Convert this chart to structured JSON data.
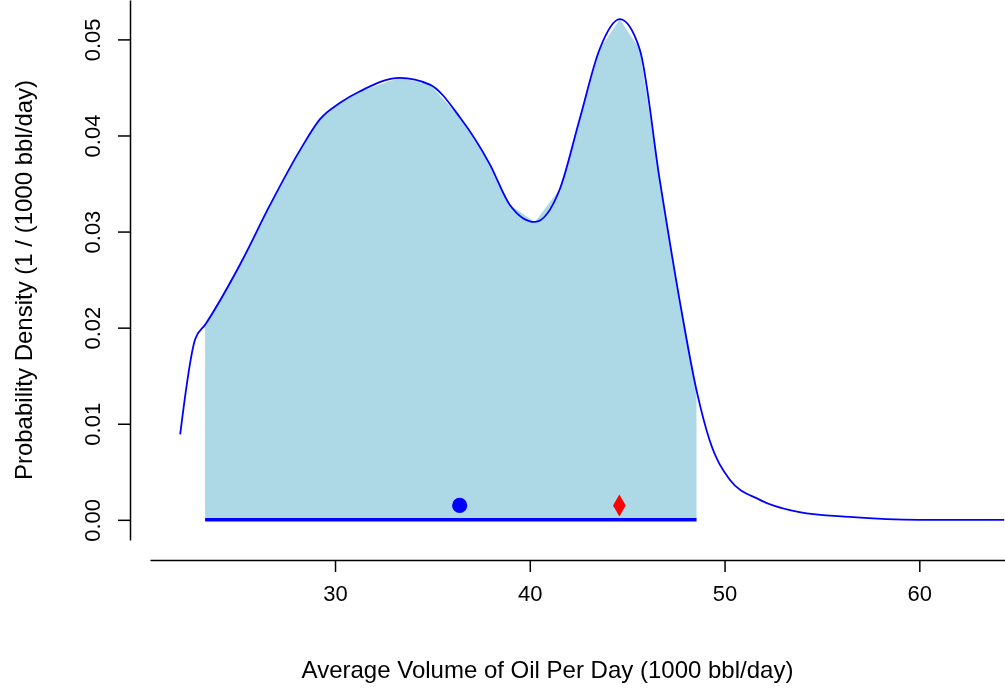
{
  "chart_data": {
    "type": "line",
    "xlabel": "Average Volume of Oil Per Day (1000 bbl/day)",
    "ylabel": "Probability Density (1 / (1000 bbl/day)",
    "xlim": [
      20.5,
      64.4
    ],
    "ylim": [
      -0.0021,
      0.0541
    ],
    "xticks": [
      30,
      40,
      50,
      60
    ],
    "yticks": [
      {
        "value": 0,
        "label": "0.00"
      },
      {
        "value": 0.01,
        "label": "0.01"
      },
      {
        "value": 0.02,
        "label": "0.02"
      },
      {
        "value": 0.03,
        "label": "0.03"
      },
      {
        "value": 0.04,
        "label": "0.04"
      },
      {
        "value": 0.05,
        "label": "0.05"
      }
    ],
    "grid": false,
    "series": [
      {
        "type": "area",
        "color": "#add8e6",
        "x": [
          23.33,
          25.13,
          26.67,
          28.21,
          29.23,
          30.26,
          31.28,
          33.33,
          34.87,
          36.41,
          37.95,
          38.97,
          40.26,
          41.54,
          42.56,
          43.59,
          44.62,
          45.64,
          46.67,
          47.69,
          48.56
        ],
        "values": [
          0.0203,
          0.0266,
          0.0328,
          0.0385,
          0.0417,
          0.0434,
          0.0446,
          0.046,
          0.0453,
          0.0419,
          0.037,
          0.0328,
          0.031,
          0.0344,
          0.0417,
          0.049,
          0.0521,
          0.049,
          0.0354,
          0.0229,
          0.0135
        ]
      },
      {
        "color": "#0000ff",
        "x": [
          22.05,
          22.82,
          23.33,
          25.13,
          26.67,
          28.21,
          29.23,
          30.26,
          31.28,
          33.33,
          34.87,
          36.41,
          37.95,
          38.97,
          40.26,
          41.54,
          42.56,
          43.59,
          44.62,
          45.64,
          46.67,
          47.69,
          48.56,
          49.23,
          50.26,
          51.79,
          53.85,
          56.41,
          60,
          64.36
        ],
        "values": [
          0.0089,
          0.0188,
          0.0203,
          0.0266,
          0.0328,
          0.0385,
          0.0417,
          0.0434,
          0.0446,
          0.046,
          0.0453,
          0.0419,
          0.037,
          0.0328,
          0.031,
          0.0344,
          0.0417,
          0.049,
          0.0521,
          0.049,
          0.0354,
          0.0229,
          0.0135,
          0.0083,
          0.0042,
          0.0021,
          0.0008,
          0.0003,
          0.0,
          0.0
        ]
      },
      {
        "color": "#0000ff",
        "x": [
          23.33,
          48.56
        ],
        "values": [
          0,
          0
        ]
      },
      {
        "type": "scatter",
        "color": "#0000ff",
        "marker": "circle",
        "x": [
          36.4
        ],
        "values": [
          0.0015
        ]
      },
      {
        "type": "scatter",
        "color": "#ff0000",
        "marker": "diamond",
        "x": [
          44.6
        ],
        "values": [
          0.0015
        ]
      }
    ]
  }
}
